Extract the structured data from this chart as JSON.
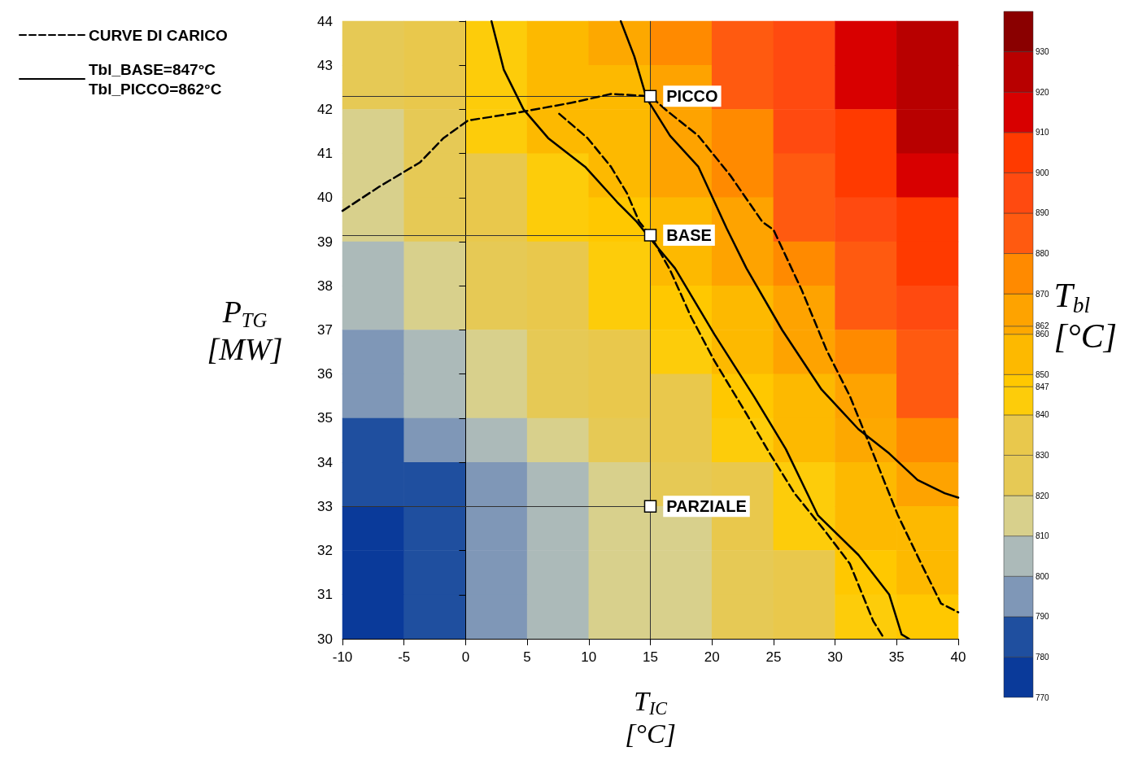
{
  "chart_data": [
    {
      "type": "heatmap",
      "clabel": "T$_{bl}$ [°C]",
      "categories": [
        null,
        null,
        null,
        null,
        null,
        null,
        null,
        null,
        null,
        null
      ],
      "y_categories": [
        null,
        null,
        null,
        null,
        null,
        null,
        null,
        null,
        null,
        null,
        null,
        null,
        null,
        null
      ],
      "cells": [
        [
          825,
          834,
          846,
          854,
          861,
          872,
          885,
          899,
          913,
          927
        ],
        [
          821,
          831,
          843,
          852,
          859,
          869,
          881,
          896,
          910,
          923
        ],
        [
          818,
          829,
          841,
          850,
          857,
          866,
          878,
          893,
          908,
          921
        ],
        [
          815,
          826,
          838,
          846,
          854,
          862,
          874,
          888,
          903,
          915
        ],
        [
          811,
          821,
          833,
          842,
          848,
          856,
          868,
          882,
          895,
          907
        ],
        [
          807,
          816,
          827,
          837,
          844,
          852,
          862,
          875,
          887,
          900
        ],
        [
          803,
          812,
          822,
          833,
          841,
          848,
          857,
          868,
          880,
          893
        ],
        [
          799,
          807,
          818,
          827,
          836,
          844,
          853,
          862,
          874,
          886
        ],
        [
          794,
          803,
          813,
          821,
          830,
          839,
          849,
          857,
          868,
          880
        ],
        [
          787,
          797,
          806,
          814,
          823,
          833,
          843,
          852,
          861,
          873
        ],
        [
          780,
          788,
          798,
          806,
          814,
          824,
          835,
          846,
          855,
          864
        ],
        [
          776,
          784,
          794,
          803,
          810,
          819,
          830,
          841,
          850,
          857
        ],
        [
          776,
          785,
          795,
          804,
          810,
          818,
          828,
          838,
          847,
          853
        ],
        [
          777,
          786,
          796,
          805,
          811,
          818,
          826,
          836,
          844,
          849
        ]
      ],
      "clim": [
        770,
        940
      ],
      "cticks": [
        770,
        780,
        790,
        800,
        810,
        820,
        830,
        840,
        847,
        850,
        860,
        862,
        870,
        880,
        890,
        900,
        910,
        920,
        930
      ],
      "colors": [
        "#0a3a9a",
        "#1f4f9f",
        "#7f97b7",
        "#acbab9",
        "#d8d08c",
        "#e6c955",
        "#e9c84c",
        "#fdcc0a",
        "#ffc800",
        "#fdb900",
        "#fda800",
        "#fea300",
        "#ff8a00",
        "#ff5a10",
        "#ff4a10",
        "#ff3a00",
        "#d80000",
        "#b80000",
        "#8a0000"
      ]
    },
    {
      "type": "line",
      "xlabel": "T$_{IC}$ [°C]",
      "ylabel": "P$_{TG}$ [MW]",
      "xlim": [
        -10,
        40
      ],
      "ylim": [
        30,
        44
      ],
      "xticks": [
        -10,
        -5,
        0,
        5,
        10,
        15,
        20,
        25,
        30,
        35,
        40
      ],
      "yticks": [
        30,
        31,
        32,
        33,
        34,
        35,
        36,
        37,
        38,
        39,
        40,
        41,
        42,
        43,
        44
      ],
      "series": [
        {
          "type": "line",
          "name": "CURVE DI CARICO",
          "color": "#000000",
          "line_style": "dashed",
          "x": [
            -10,
            -7,
            -3.7,
            -1.8,
            0.2,
            3.7,
            8.6,
            11.8,
            15,
            16.3,
            18.9,
            21.5,
            24.1,
            25,
            27.3,
            29.3,
            31.2,
            32.8,
            35.1,
            37,
            38.6,
            40
          ],
          "values": [
            39.7,
            40.25,
            40.8,
            41.35,
            41.75,
            41.9,
            42.15,
            42.35,
            42.3,
            41.98,
            41.4,
            40.5,
            39.45,
            39.27,
            37.9,
            36.55,
            35.5,
            34.4,
            32.8,
            31.7,
            30.8,
            30.6
          ]
        },
        {
          "type": "line",
          "color": "#000000",
          "line_style": "dashed",
          "x": [
            7.6,
            9.9,
            11.8,
            13.1,
            14.1,
            15,
            16.6,
            18.3,
            20.2,
            22.8,
            24.7,
            26.7,
            29.3,
            31.2,
            33.1,
            34
          ],
          "values": [
            41.9,
            41.35,
            40.7,
            40.1,
            39.45,
            39.15,
            38.36,
            37.3,
            36.3,
            35.1,
            34.2,
            33.3,
            32.4,
            31.7,
            30.4,
            30
          ]
        },
        {
          "type": "line",
          "name": "Tbl_BASE=847°C\nTbl_PICCO=862°C",
          "color": "#000000",
          "line_style": "solid",
          "x": [
            2.1,
            3.1,
            4.7,
            6.7,
            9.7,
            12.3,
            13.9,
            15.2,
            17,
            20.2,
            23.4,
            26,
            28.6,
            31.9,
            34.4,
            35.4,
            36
          ],
          "values": [
            44,
            42.9,
            42,
            41.35,
            40.7,
            39.9,
            39.45,
            39,
            38.4,
            36.9,
            35.5,
            34.3,
            32.8,
            31.9,
            31,
            30.1,
            30
          ]
        },
        {
          "type": "line",
          "color": "#000000",
          "line_style": "solid",
          "x": [
            12.6,
            13.7,
            14.7,
            16.6,
            18.9,
            21.2,
            22.8,
            25.7,
            28.9,
            31.9,
            34.4,
            36.7,
            38.9,
            40
          ],
          "values": [
            44,
            43.2,
            42.25,
            41.4,
            40.7,
            39.3,
            38.4,
            37,
            35.65,
            34.75,
            34.2,
            33.6,
            33.3,
            33.2
          ]
        },
        {
          "type": "scatter",
          "color": "#ffffff",
          "marker": "square",
          "x": [
            15,
            15,
            15
          ],
          "values": [
            42.3,
            39.15,
            33
          ],
          "value_labels": [
            "PICCO",
            "BASE",
            "PARZIALE"
          ]
        }
      ],
      "ref_lines": [
        {
          "axis": "y",
          "value": 42.3
        },
        {
          "axis": "y",
          "value": 39.15
        },
        {
          "axis": "y",
          "value": 33
        },
        {
          "axis": "x",
          "value": 15
        }
      ],
      "legend": "top left",
      "grid": false
    }
  ]
}
